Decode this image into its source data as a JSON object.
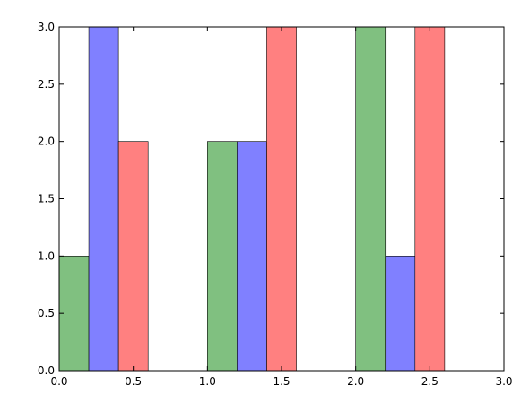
{
  "chart_data": {
    "type": "bar",
    "title": "",
    "xlabel": "",
    "ylabel": "",
    "xlim": [
      0,
      3
    ],
    "ylim": [
      0,
      3
    ],
    "grid": false,
    "bar_width": 0.2,
    "xticks": [
      "0.0",
      "0.5",
      "1.0",
      "1.5",
      "2.0",
      "2.5",
      "3.0"
    ],
    "yticks": [
      "0.0",
      "0.5",
      "1.0",
      "1.5",
      "2.0",
      "2.5",
      "3.0"
    ],
    "series": [
      {
        "color": "#80c080",
        "x": [
          0.0,
          1.0,
          2.0
        ],
        "values": [
          1,
          2,
          3
        ]
      },
      {
        "color": "#8080ff",
        "x": [
          0.2,
          1.2,
          2.2
        ],
        "values": [
          3,
          2,
          1
        ]
      },
      {
        "color": "#ff8080",
        "x": [
          0.4,
          1.4,
          2.4
        ],
        "values": [
          2,
          3,
          3
        ]
      }
    ]
  }
}
